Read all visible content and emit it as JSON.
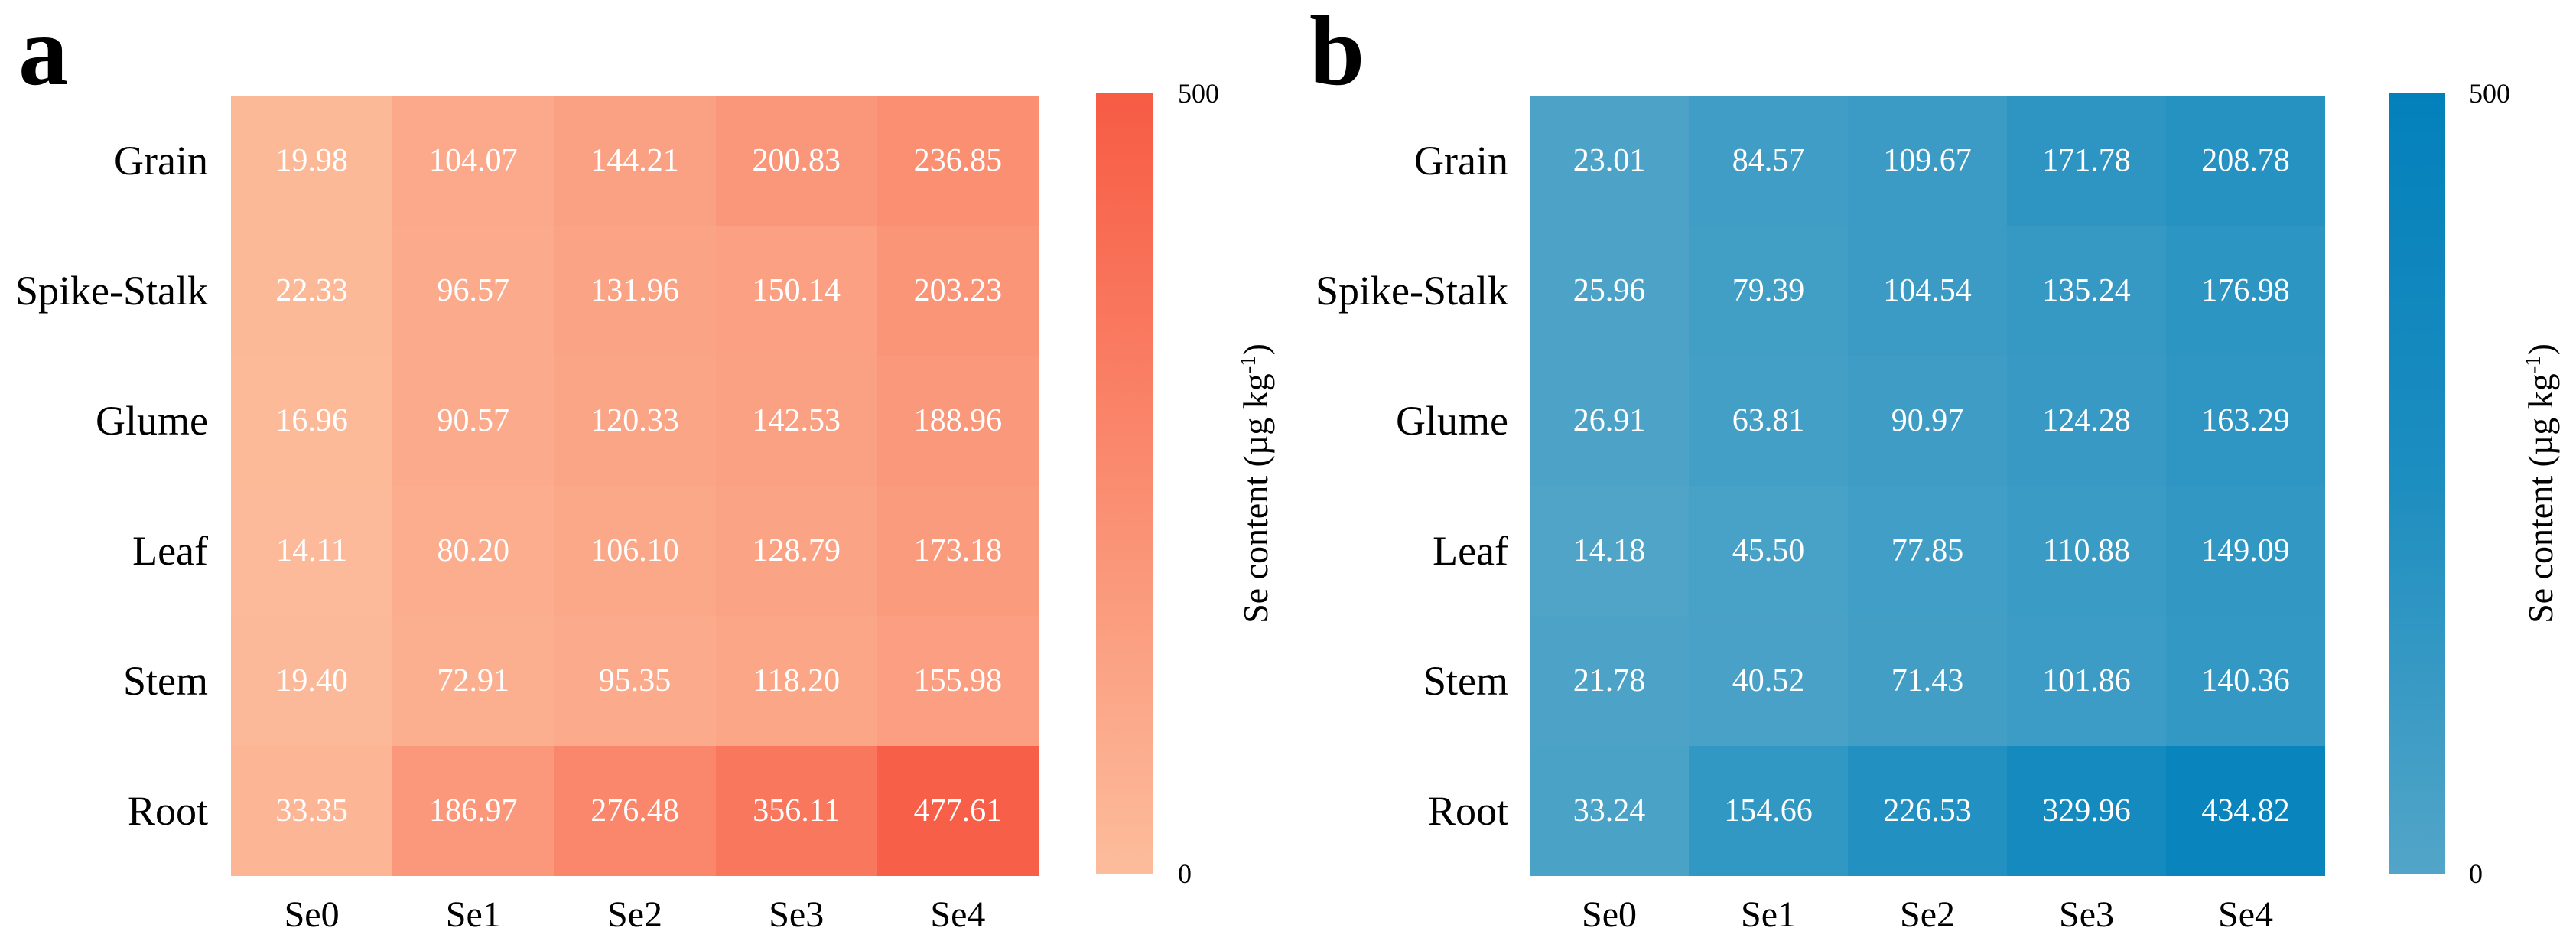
{
  "figure": {
    "panels": [
      {
        "letter": "a",
        "rows": [
          "Grain",
          "Spike-Stalk",
          "Glume",
          "Leaf",
          "Stem",
          "Root"
        ],
        "cols": [
          "Se0",
          "Se1",
          "Se2",
          "Se3",
          "Se4"
        ],
        "cells": [
          [
            "19.98",
            "104.07",
            "144.21",
            "200.83",
            "236.85"
          ],
          [
            "22.33",
            "96.57",
            "131.96",
            "150.14",
            "203.23"
          ],
          [
            "16.96",
            "90.57",
            "120.33",
            "142.53",
            "188.96"
          ],
          [
            "14.11",
            "80.20",
            "106.10",
            "128.79",
            "173.18"
          ],
          [
            "19.40",
            "72.91",
            "95.35",
            "118.20",
            "155.98"
          ],
          [
            "33.35",
            "186.97",
            "276.48",
            "356.11",
            "477.61"
          ]
        ],
        "colorbar": {
          "max_tick": "500",
          "min_tick": "0",
          "label_main": "Se content (µg kg",
          "label_sup": "-1",
          "label_close": ")",
          "gradient_stops": [
            "#FCBD9C",
            "#FA8C70",
            "#F75B44"
          ]
        }
      },
      {
        "letter": "b",
        "rows": [
          "Grain",
          "Spike-Stalk",
          "Glume",
          "Leaf",
          "Stem",
          "Root"
        ],
        "cols": [
          "Se0",
          "Se1",
          "Se2",
          "Se3",
          "Se4"
        ],
        "cells": [
          [
            "23.01",
            "84.57",
            "109.67",
            "171.78",
            "208.78"
          ],
          [
            "25.96",
            "79.39",
            "104.54",
            "135.24",
            "176.98"
          ],
          [
            "26.91",
            "63.81",
            "90.97",
            "124.28",
            "163.29"
          ],
          [
            "14.18",
            "45.50",
            "77.85",
            "110.88",
            "149.09"
          ],
          [
            "21.78",
            "40.52",
            "71.43",
            "101.86",
            "140.36"
          ],
          [
            "33.24",
            "154.66",
            "226.53",
            "329.96",
            "434.82"
          ]
        ],
        "colorbar": {
          "max_tick": "500",
          "min_tick": "0",
          "label_main": "Se content (µg kg",
          "label_sup": "-1",
          "label_close": ")",
          "gradient_stops": [
            "#52A5C8",
            "#1D8EC0",
            "#0380BB"
          ]
        }
      }
    ]
  },
  "chart_data": [
    {
      "type": "heatmap",
      "panel": "a",
      "x": [
        "Se0",
        "Se1",
        "Se2",
        "Se3",
        "Se4"
      ],
      "y": [
        "Grain",
        "Spike-Stalk",
        "Glume",
        "Leaf",
        "Stem",
        "Root"
      ],
      "values": [
        [
          19.98,
          104.07,
          144.21,
          200.83,
          236.85
        ],
        [
          22.33,
          96.57,
          131.96,
          150.14,
          203.23
        ],
        [
          16.96,
          90.57,
          120.33,
          142.53,
          188.96
        ],
        [
          14.11,
          80.2,
          106.1,
          128.79,
          173.18
        ],
        [
          19.4,
          72.91,
          95.35,
          118.2,
          155.98
        ],
        [
          33.35,
          186.97,
          276.48,
          356.11,
          477.61
        ]
      ],
      "colorbar_label": "Se content (µg kg-1)",
      "scale_range": [
        0,
        500
      ],
      "palette": "sequential light-peach to red-orange",
      "cell_value_labels": true,
      "grid": false,
      "legend_position": "right-colorbar"
    },
    {
      "type": "heatmap",
      "panel": "b",
      "x": [
        "Se0",
        "Se1",
        "Se2",
        "Se3",
        "Se4"
      ],
      "y": [
        "Grain",
        "Spike-Stalk",
        "Glume",
        "Leaf",
        "Stem",
        "Root"
      ],
      "values": [
        [
          23.01,
          84.57,
          109.67,
          171.78,
          208.78
        ],
        [
          25.96,
          79.39,
          104.54,
          135.24,
          176.98
        ],
        [
          26.91,
          63.81,
          90.97,
          124.28,
          163.29
        ],
        [
          14.18,
          45.5,
          77.85,
          110.88,
          149.09
        ],
        [
          21.78,
          40.52,
          71.43,
          101.86,
          140.36
        ],
        [
          33.24,
          154.66,
          226.53,
          329.96,
          434.82
        ]
      ],
      "colorbar_label": "Se content (µg kg-1)",
      "scale_range": [
        0,
        500
      ],
      "palette": "sequential light-blue to deep-blue",
      "cell_value_labels": true,
      "grid": false,
      "legend_position": "right-colorbar"
    }
  ]
}
